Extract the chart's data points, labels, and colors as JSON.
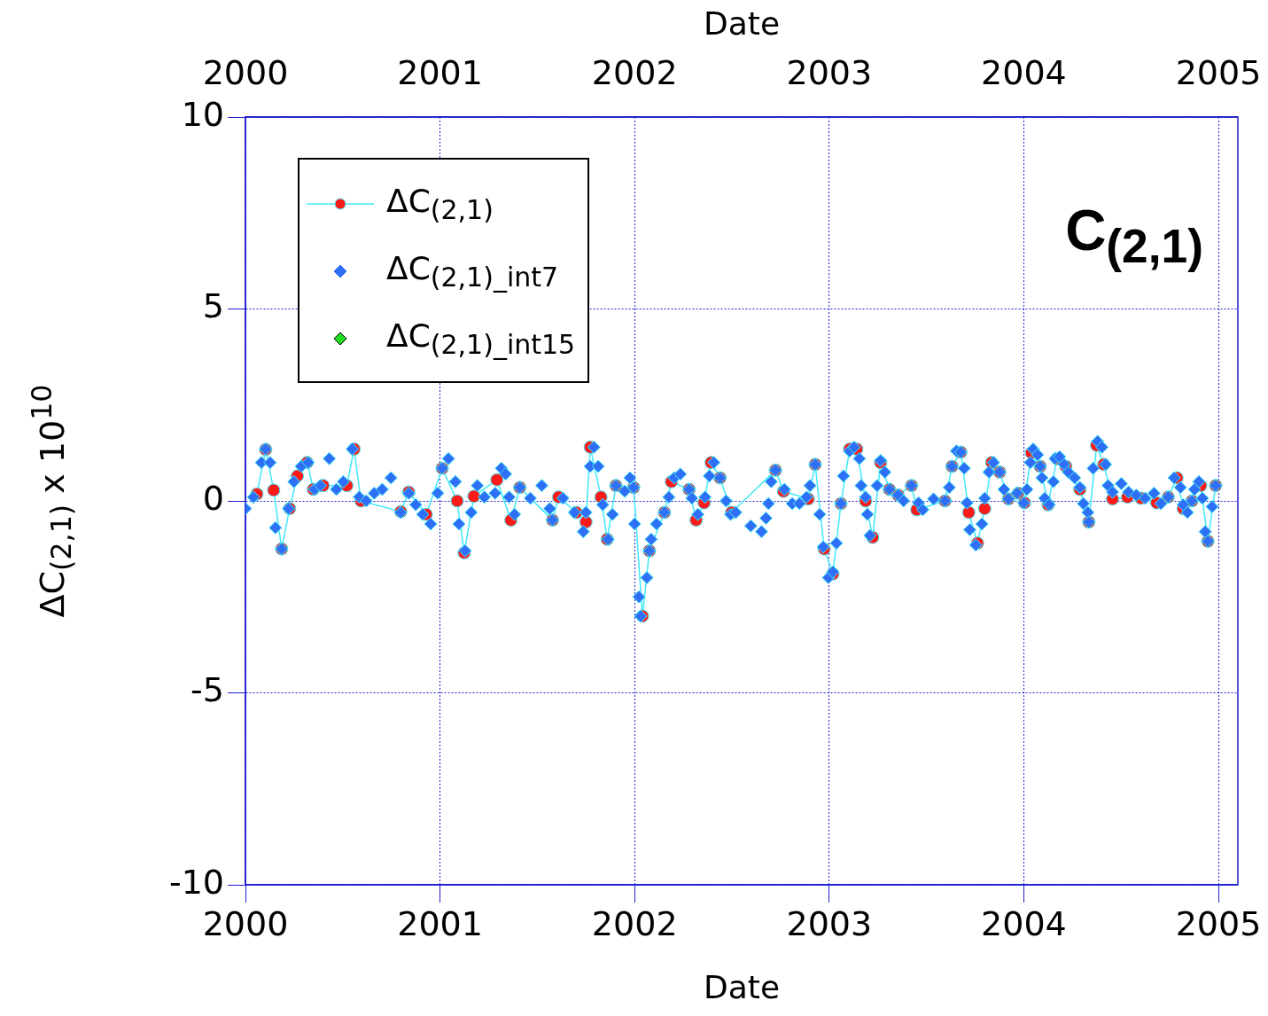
{
  "chart_data": {
    "type": "scatter",
    "xlabel": "Date",
    "x2label": "Date",
    "ylabel": "ΔC$_{(2,1)}$  x 10$^{10}$",
    "xlim": [
      2000,
      2005.1
    ],
    "xticks": [
      2000,
      2001,
      2002,
      2003,
      2004,
      2005
    ],
    "x2lim": [
      2000,
      2005.1
    ],
    "x2ticks": [
      2000,
      2001,
      2002,
      2003,
      2004,
      2005
    ],
    "ylim": [
      -10,
      10
    ],
    "yticks": [
      -10,
      -5,
      0,
      5,
      10
    ],
    "grid": true,
    "legend": "top left",
    "annotations": [
      "C$_{(2,1)}$"
    ],
    "series": [
      {
        "name": "ΔC$_{(2,1)}$",
        "type": "line",
        "marker": "circle",
        "line_style": "solid",
        "color": "#ff1a1a",
        "x": [
          2000.059,
          2000.104,
          2000.145,
          2000.186,
          2000.227,
          2000.267,
          2000.317,
          2000.349,
          2000.399,
          2000.521,
          2000.558,
          2000.594,
          2000.798,
          2000.839,
          2000.929,
          2001.011,
          2001.088,
          2001.124,
          2001.174,
          2001.292,
          2001.364,
          2001.41,
          2001.578,
          2001.609,
          2001.7,
          2001.75,
          2001.772,
          2001.827,
          2001.859,
          2001.904,
          2001.995,
          2002.04,
          2002.076,
          2002.153,
          2002.189,
          2002.28,
          2002.316,
          2002.357,
          2002.393,
          2002.439,
          2002.498,
          2002.724,
          2002.765,
          2002.892,
          2002.928,
          2002.974,
          2003.019,
          2003.06,
          2003.105,
          2003.141,
          2003.187,
          2003.223,
          2003.264,
          2003.309,
          2003.354,
          2003.423,
          2003.45,
          2003.595,
          2003.631,
          2003.676,
          2003.717,
          2003.762,
          2003.799,
          2003.835,
          2003.876,
          2003.921,
          2003.971,
          2004.003,
          2004.039,
          2004.084,
          2004.125,
          2004.17,
          2004.216,
          2004.288,
          2004.334,
          2004.374,
          2004.411,
          2004.456,
          2004.533,
          2004.601,
          2004.683,
          2004.742,
          2004.787,
          2004.819,
          2004.864,
          2004.909,
          2004.946,
          2004.986
        ],
        "values": [
          0.18,
          1.34,
          0.28,
          -1.25,
          -0.2,
          0.65,
          1.0,
          0.3,
          0.4,
          0.4,
          1.35,
          0.0,
          -0.28,
          0.23,
          -0.35,
          0.85,
          0.0,
          -1.35,
          0.12,
          0.55,
          -0.5,
          0.35,
          -0.5,
          0.1,
          -0.3,
          -0.55,
          1.4,
          0.1,
          -1.0,
          0.4,
          0.35,
          -3.0,
          -1.3,
          -0.3,
          0.5,
          0.3,
          -0.5,
          -0.05,
          1.0,
          0.6,
          -0.3,
          0.8,
          0.25,
          0.05,
          0.95,
          -1.25,
          -1.9,
          -0.07,
          1.35,
          1.35,
          0.0,
          -0.95,
          1.0,
          0.3,
          0.15,
          0.4,
          -0.23,
          0.0,
          0.9,
          1.27,
          -0.3,
          -1.1,
          -0.2,
          1.0,
          0.75,
          0.05,
          0.2,
          -0.05,
          1.25,
          0.9,
          -0.1,
          1.1,
          0.9,
          0.3,
          -0.55,
          1.45,
          0.95,
          0.05,
          0.1,
          0.07,
          -0.05,
          0.1,
          0.6,
          -0.2,
          0.0,
          0.4,
          -1.05,
          0.4
        ]
      },
      {
        "name": "ΔC$_{(2,1)_int7}$",
        "type": "scatter",
        "marker": "diamond",
        "color": "#2f6ff5",
        "x": [
          2000.0,
          2000.041,
          2000.082,
          2000.104,
          2000.127,
          2000.154,
          2000.186,
          2000.222,
          2000.249,
          2000.286,
          2000.322,
          2000.354,
          2000.385,
          2000.431,
          2000.467,
          2000.503,
          2000.549,
          2000.585,
          2000.621,
          2000.662,
          2000.703,
          2000.748,
          2000.798,
          2000.839,
          2000.875,
          2000.911,
          2000.952,
          2000.988,
          2001.011,
          2001.043,
          2001.079,
          2001.097,
          2001.129,
          2001.16,
          2001.192,
          2001.228,
          2001.283,
          2001.315,
          2001.337,
          2001.355,
          2001.383,
          2001.41,
          2001.464,
          2001.523,
          2001.564,
          2001.578,
          2001.632,
          2001.691,
          2001.736,
          2001.75,
          2001.772,
          2001.791,
          2001.813,
          2001.836,
          2001.863,
          2001.886,
          2001.904,
          2001.949,
          2001.976,
          2001.995,
          2002.0,
          2002.022,
          2002.031,
          2002.063,
          2002.076,
          2002.085,
          2002.112,
          2002.153,
          2002.176,
          2002.203,
          2002.235,
          2002.28,
          2002.294,
          2002.325,
          2002.362,
          2002.384,
          2002.407,
          2002.439,
          2002.47,
          2002.493,
          2002.52,
          2002.597,
          2002.652,
          2002.675,
          2002.688,
          2002.702,
          2002.724,
          2002.77,
          2002.81,
          2002.847,
          2002.883,
          2002.901,
          2002.928,
          2002.951,
          2002.969,
          2002.996,
          2003.019,
          2003.037,
          2003.06,
          2003.073,
          2003.105,
          2003.128,
          2003.155,
          2003.164,
          2003.187,
          2003.196,
          2003.209,
          2003.246,
          2003.264,
          2003.286,
          2003.309,
          2003.354,
          2003.382,
          2003.423,
          2003.459,
          2003.481,
          2003.536,
          2003.595,
          2003.617,
          2003.631,
          2003.654,
          2003.676,
          2003.694,
          2003.708,
          2003.722,
          2003.753,
          2003.785,
          2003.799,
          2003.821,
          2003.844,
          2003.876,
          2003.898,
          2003.921,
          2003.966,
          2004.0,
          2004.016,
          2004.034,
          2004.048,
          2004.071,
          2004.084,
          2004.093,
          2004.107,
          2004.13,
          2004.152,
          2004.161,
          2004.184,
          2004.207,
          2004.229,
          2004.261,
          2004.288,
          2004.306,
          2004.329,
          2004.334,
          2004.356,
          2004.379,
          2004.402,
          2004.42,
          2004.433,
          2004.456,
          2004.501,
          2004.538,
          2004.578,
          2004.624,
          2004.669,
          2004.705,
          2004.742,
          2004.773,
          2004.805,
          2004.819,
          2004.841,
          2004.864,
          2004.877,
          2004.9,
          2004.918,
          2004.932,
          2004.946,
          2004.968,
          2004.986
        ],
        "values": [
          -0.2,
          0.1,
          1.0,
          1.35,
          1.0,
          -0.7,
          -1.25,
          -0.2,
          0.5,
          0.9,
          1.0,
          0.3,
          0.4,
          1.1,
          0.3,
          0.5,
          1.35,
          0.1,
          0.0,
          0.2,
          0.3,
          0.6,
          -0.3,
          0.2,
          -0.1,
          -0.35,
          -0.6,
          0.2,
          0.85,
          1.1,
          0.5,
          -0.6,
          -1.3,
          -0.3,
          0.4,
          0.1,
          0.2,
          0.85,
          0.7,
          0.1,
          -0.35,
          0.35,
          0.07,
          0.4,
          -0.2,
          -0.5,
          0.07,
          -0.3,
          -0.8,
          -0.3,
          0.9,
          1.4,
          0.9,
          -0.1,
          -1.0,
          -0.35,
          0.4,
          0.25,
          0.6,
          0.35,
          -0.6,
          -2.5,
          -3.0,
          -2.0,
          -1.3,
          -1.0,
          -0.6,
          -0.3,
          0.1,
          0.6,
          0.7,
          0.3,
          0.07,
          -0.35,
          0.1,
          0.65,
          1.0,
          0.6,
          0.0,
          -0.35,
          -0.3,
          -0.65,
          -0.8,
          -0.45,
          -0.07,
          0.5,
          0.8,
          0.3,
          -0.07,
          -0.07,
          0.1,
          0.4,
          0.95,
          -0.35,
          -1.2,
          -2.0,
          -1.85,
          -1.1,
          -0.07,
          0.65,
          1.3,
          1.4,
          1.1,
          0.4,
          0.1,
          -0.35,
          -0.9,
          0.4,
          1.05,
          0.75,
          0.3,
          0.15,
          0.0,
          0.4,
          -0.05,
          -0.23,
          0.05,
          0.0,
          0.35,
          0.9,
          1.3,
          1.27,
          0.85,
          -0.05,
          -0.75,
          -1.15,
          -0.6,
          0.07,
          0.75,
          1.0,
          0.75,
          0.3,
          0.05,
          0.2,
          -0.05,
          0.3,
          1.0,
          1.35,
          1.2,
          0.9,
          0.6,
          0.07,
          -0.1,
          0.5,
          1.1,
          1.15,
          0.95,
          0.75,
          0.6,
          0.35,
          -0.07,
          -0.3,
          -0.55,
          0.85,
          1.55,
          1.4,
          0.95,
          0.4,
          0.23,
          0.45,
          0.23,
          0.15,
          0.07,
          0.2,
          -0.07,
          0.1,
          0.6,
          0.35,
          -0.1,
          -0.3,
          0.0,
          0.3,
          0.5,
          0.07,
          -0.8,
          -1.05,
          -0.15,
          0.4
        ]
      },
      {
        "name": "ΔC$_{(2,1)_int15}$",
        "type": "scatter",
        "marker": "diamond",
        "color": "#22dd22"
      }
    ]
  }
}
